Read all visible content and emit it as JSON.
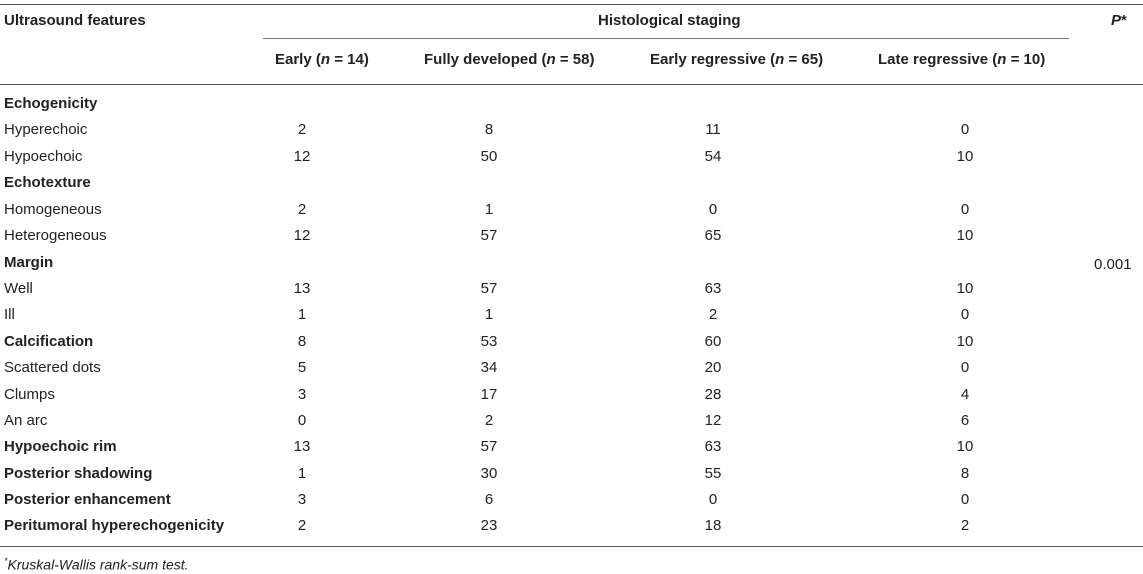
{
  "table": {
    "header": {
      "col_features": "Ultrasound features",
      "group_title": "Histological staging",
      "col_p": "P",
      "col_p_mark": "*",
      "stages": [
        {
          "name": "Early",
          "n_label": "n",
          "n_value": "= 14"
        },
        {
          "name": "Fully developed",
          "n_label": "n",
          "n_value": "= 58"
        },
        {
          "name": "Early regressive",
          "n_label": "n",
          "n_value": "= 65"
        },
        {
          "name": "Late regressive",
          "n_label": "n",
          "n_value": "= 10"
        }
      ]
    },
    "rows": [
      {
        "label": "Echogenicity",
        "bold": true,
        "values": [
          "",
          "",
          "",
          ""
        ]
      },
      {
        "label": "Hyperechoic",
        "bold": false,
        "values": [
          "2",
          "8",
          "11",
          "0"
        ]
      },
      {
        "label": "Hypoechoic",
        "bold": false,
        "values": [
          "12",
          "50",
          "54",
          "10"
        ]
      },
      {
        "label": "Echotexture",
        "bold": true,
        "values": [
          "",
          "",
          "",
          ""
        ]
      },
      {
        "label": "Homogeneous",
        "bold": false,
        "values": [
          "2",
          "1",
          "0",
          "0"
        ]
      },
      {
        "label": "Heterogeneous",
        "bold": false,
        "values": [
          "12",
          "57",
          "65",
          "10"
        ]
      },
      {
        "label": "Margin",
        "bold": true,
        "values": [
          "",
          "",
          "",
          ""
        ]
      },
      {
        "label": "Well",
        "bold": false,
        "values": [
          "13",
          "57",
          "63",
          "10"
        ]
      },
      {
        "label": "Ill",
        "bold": false,
        "values": [
          "1",
          "1",
          "2",
          "0"
        ]
      },
      {
        "label": "Calcification",
        "bold": true,
        "values": [
          "8",
          "53",
          "60",
          "10"
        ]
      },
      {
        "label": "Scattered dots",
        "bold": false,
        "values": [
          "5",
          "34",
          "20",
          "0"
        ]
      },
      {
        "label": "Clumps",
        "bold": false,
        "values": [
          "3",
          "17",
          "28",
          "4"
        ]
      },
      {
        "label": "An arc",
        "bold": false,
        "values": [
          "0",
          "2",
          "12",
          "6"
        ]
      },
      {
        "label": "Hypoechoic rim",
        "bold": true,
        "values": [
          "13",
          "57",
          "63",
          "10"
        ]
      },
      {
        "label": "Posterior shadowing",
        "bold": true,
        "values": [
          "1",
          "30",
          "55",
          "8"
        ]
      },
      {
        "label": "Posterior enhancement",
        "bold": true,
        "values": [
          "3",
          "6",
          "0",
          "0"
        ]
      },
      {
        "label": "Peritumoral hyperechogenicity",
        "bold": true,
        "values": [
          "2",
          "23",
          "18",
          "2"
        ]
      }
    ],
    "p_value": "0.001"
  },
  "footnote": {
    "mark": "*",
    "text": "Kruskal-Wallis rank-sum test."
  }
}
